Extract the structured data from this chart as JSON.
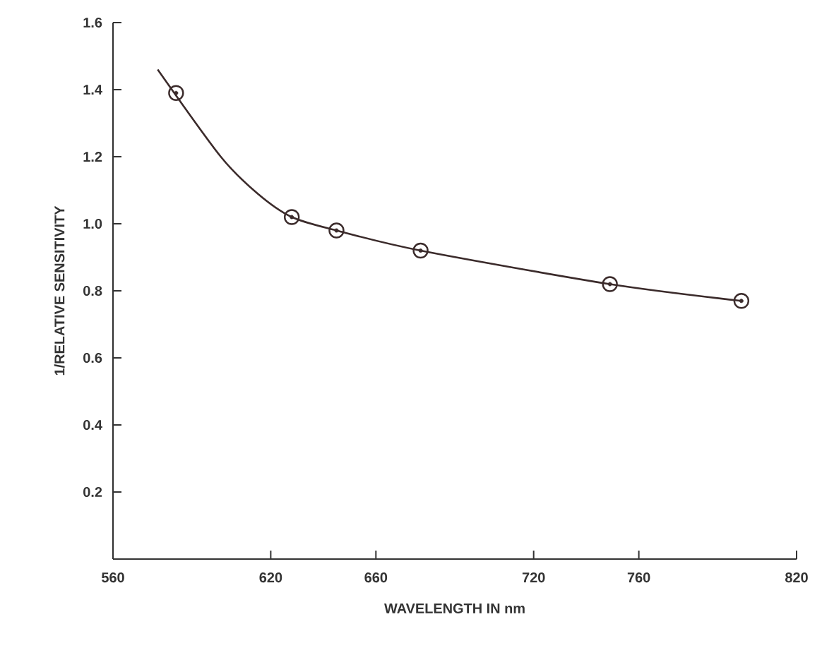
{
  "chart_data": {
    "type": "line",
    "xlabel": "WAVELENGTH IN nm",
    "ylabel": "1/RELATIVE SENSITIVITY",
    "xlim": [
      560,
      820
    ],
    "ylim": [
      0,
      1.6
    ],
    "xticks": [
      560,
      620,
      660,
      720,
      760,
      820
    ],
    "yticks": [
      0.2,
      0.4,
      0.6,
      0.8,
      {
        "value": 1,
        "label": "1.0"
      },
      1.2,
      1.4,
      1.6
    ],
    "marker": "circle",
    "series": [
      {
        "color": "#3b2b2b",
        "x": [
          577,
          601,
          615,
          628,
          645,
          677,
          749,
          799
        ],
        "values": [
          1.46,
          1.2,
          1.09,
          1.02,
          0.98,
          0.92,
          0.82,
          0.77
        ]
      },
      {
        "type": "scatter",
        "color": "#3b2b2b",
        "x": [
          584,
          628,
          645,
          677,
          749,
          799
        ],
        "values": [
          1.39,
          1.02,
          0.98,
          0.92,
          0.82,
          0.77
        ]
      }
    ]
  }
}
